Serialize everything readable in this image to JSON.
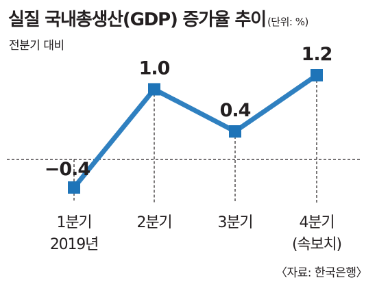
{
  "title": "실질 국내총생산(GDP) 증가율 추이",
  "unit": "(단위: %)",
  "subtitle": "전분기 대비",
  "source": "〈자료: 한국은행〉",
  "colors": {
    "line": "#2f80c0",
    "marker": "#1e74b8",
    "text": "#231f20",
    "guide": "#231f20"
  },
  "chart_data": {
    "type": "line",
    "categories": [
      "1분기\n2019년",
      "2분기",
      "3분기",
      "4분기\n(속보치)"
    ],
    "values": [
      -0.4,
      1.0,
      0.4,
      1.2
    ],
    "data_labels": [
      "−0.4",
      "1.0",
      "0.4",
      "1.2"
    ],
    "title": "실질 국내총생산(GDP) 증가율 추이",
    "ylabel": "전분기 대비",
    "unit": "%",
    "baseline": 0,
    "grid": false
  }
}
